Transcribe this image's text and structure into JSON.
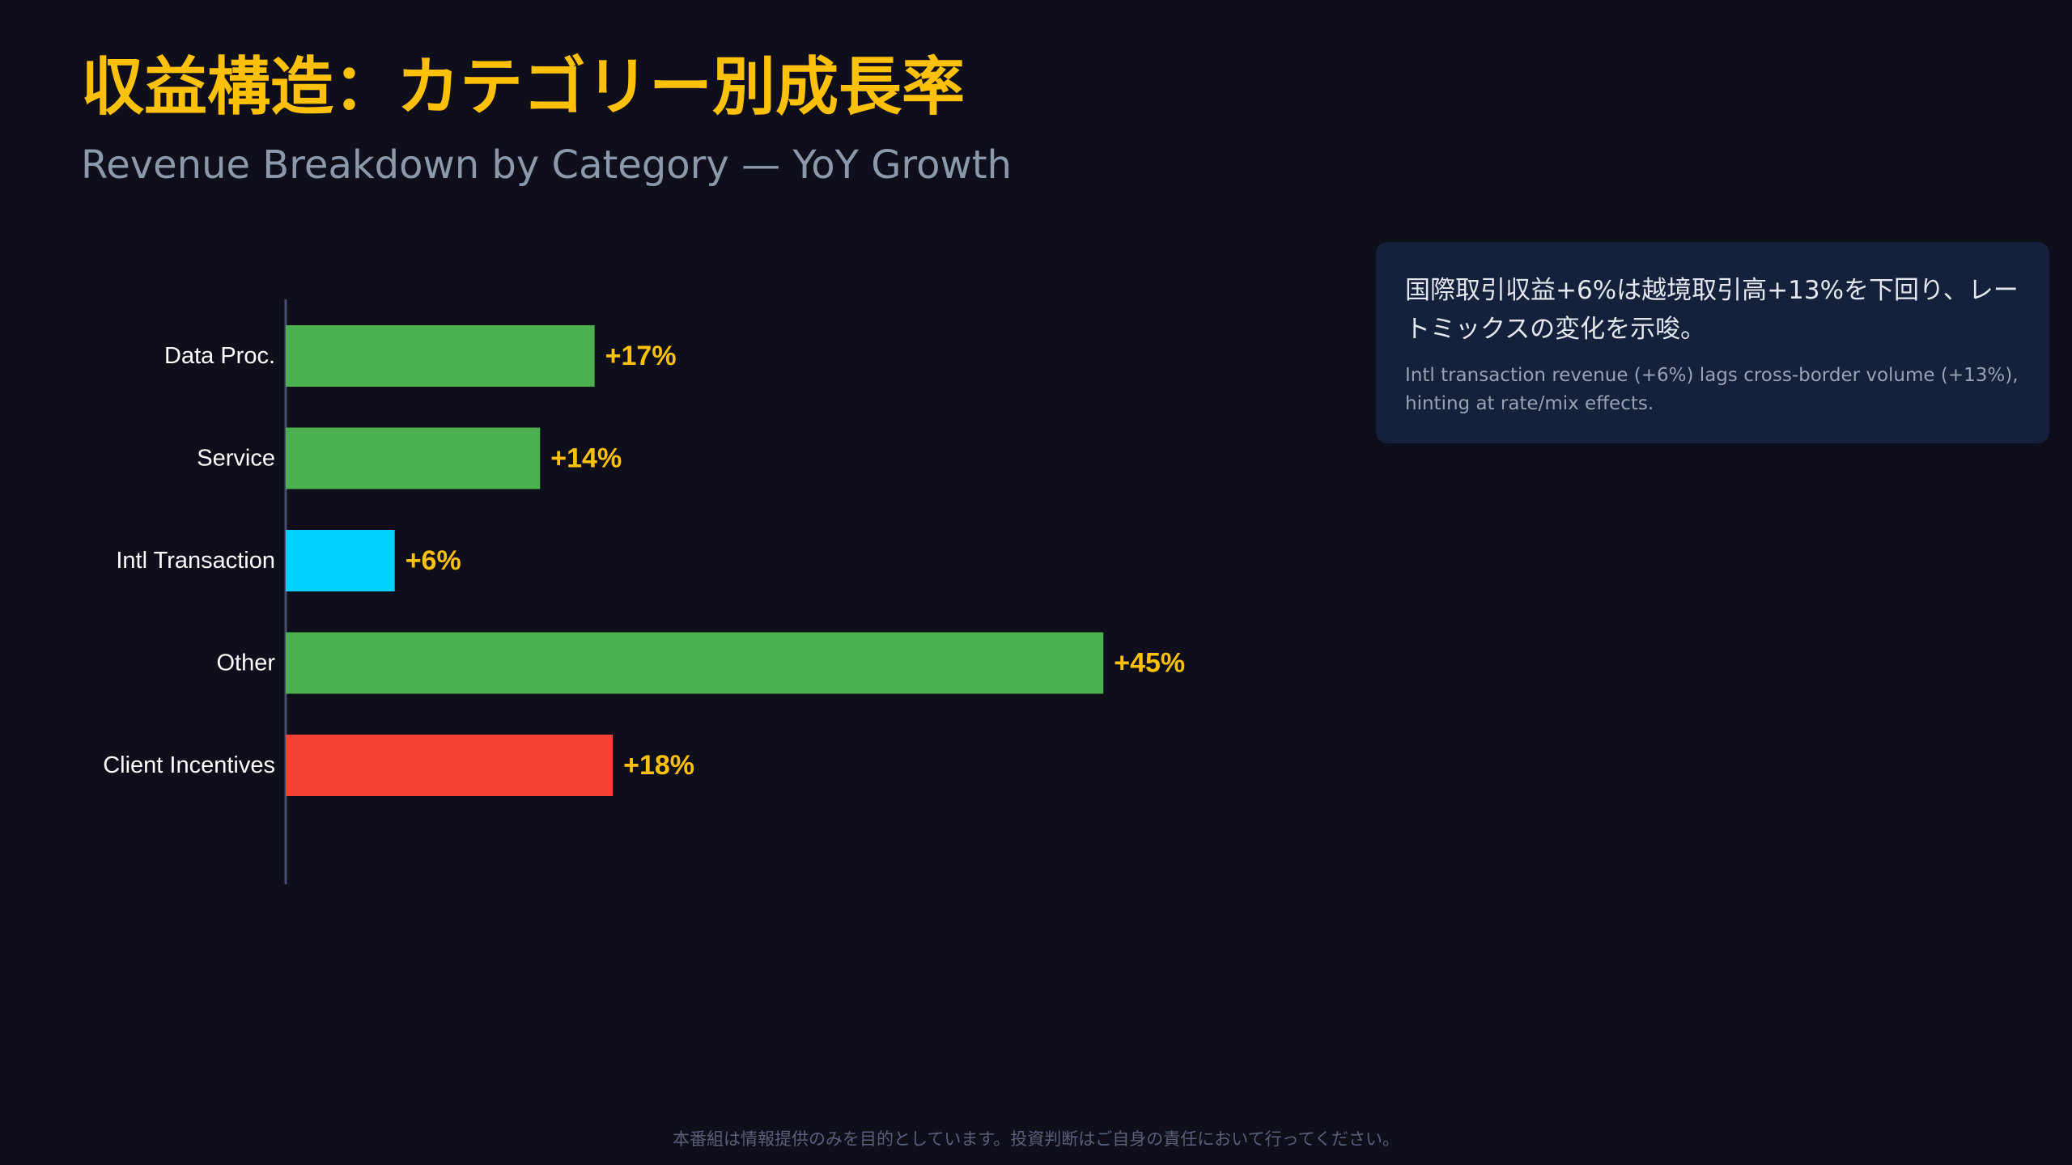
{
  "header": {
    "title": "収益構造：カテゴリー別成長率",
    "subtitle": "Revenue Breakdown by Category — YoY Growth"
  },
  "insight": {
    "ja": "国際取引収益+6%は越境取引高+13%を下回り、レートミックスの変化を示唆。",
    "en": "Intl transaction revenue (+6%) lags cross-border volume (+13%), hinting at rate/mix effects."
  },
  "footer": {
    "disclaimer": "本番組は情報提供のみを目的としています。投資判断はご自身の責任において行ってください。"
  },
  "colors": {
    "background": "#0e0f1a",
    "title": "#ffc107",
    "value_label": "#ffc107",
    "axis": "#4a4d6e",
    "growth": "#4caf50",
    "highlight": "#00d2ff",
    "cost": "#f44336"
  },
  "chart_data": {
    "type": "bar",
    "orientation": "horizontal",
    "categories": [
      "Data Proc.",
      "Service",
      "Intl Transaction",
      "Other",
      "Client Incentives"
    ],
    "values": [
      17,
      14,
      6,
      45,
      18
    ],
    "value_labels": [
      "+17%",
      "+14%",
      "+6%",
      "+45%",
      "+18%"
    ],
    "bar_colors": [
      "#4caf50",
      "#4caf50",
      "#00d2ff",
      "#4caf50",
      "#f44336"
    ],
    "xlim": [
      0,
      50
    ],
    "grid": false,
    "legend": "none"
  }
}
